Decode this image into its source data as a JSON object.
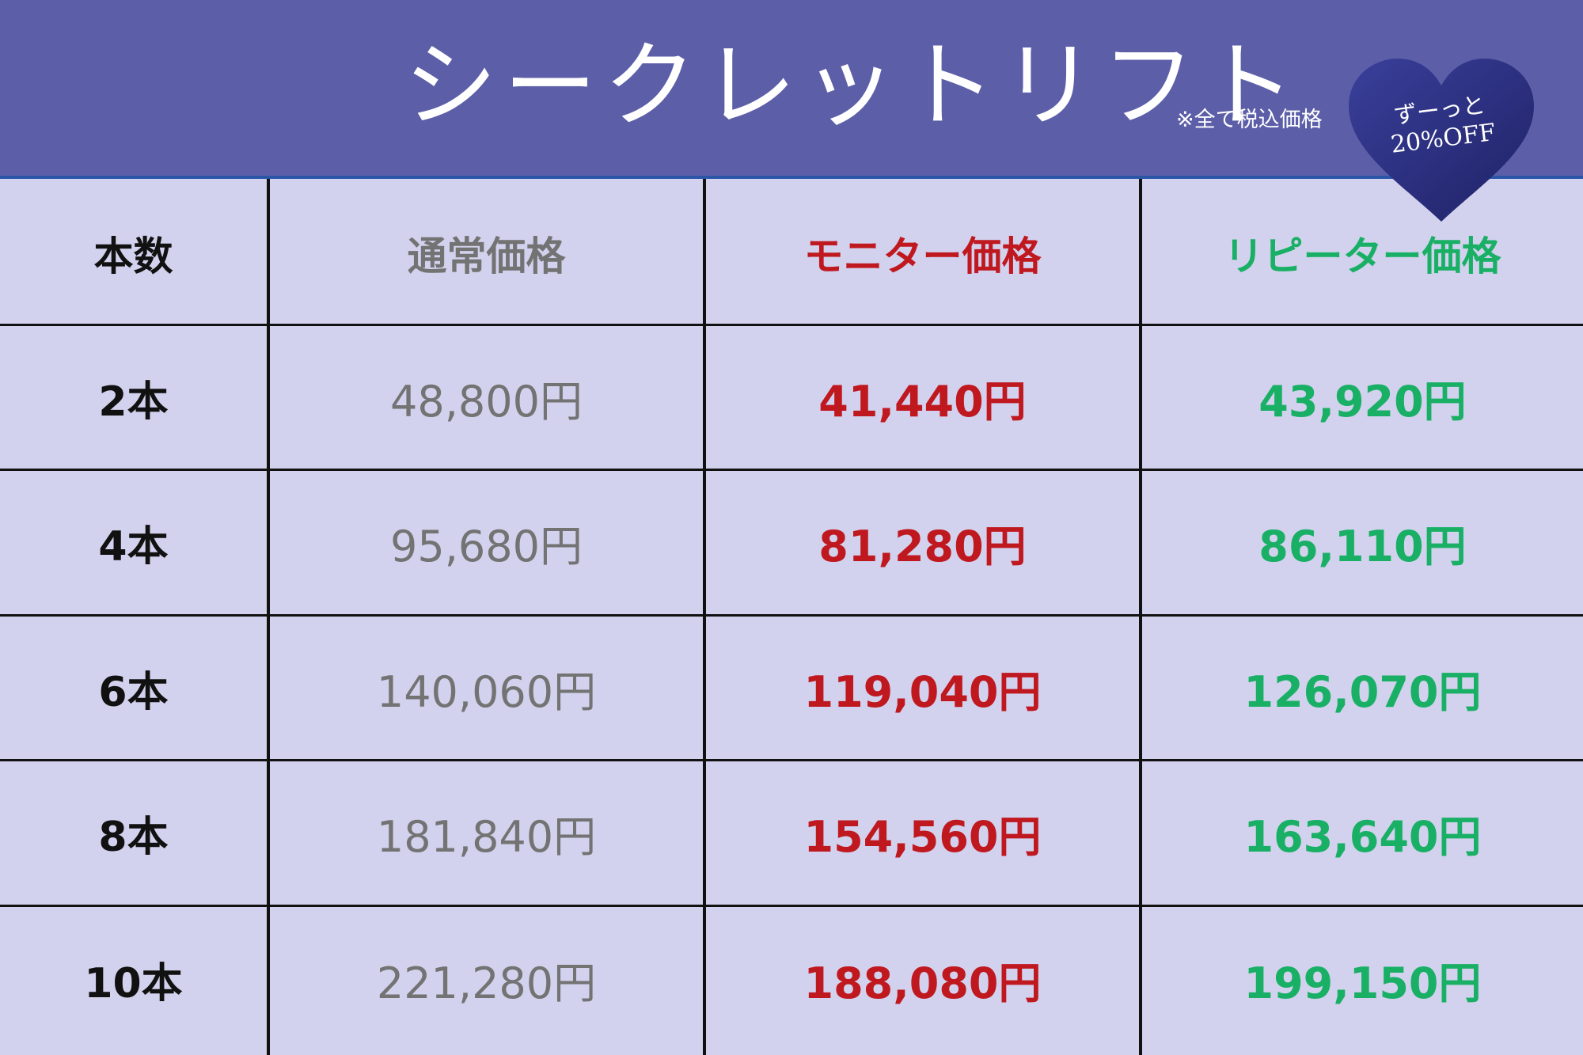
{
  "header": {
    "title": "シークレットリフト",
    "note": "※全て税込価格",
    "badge_line1": "ずーっと",
    "badge_line2": "20%OFF"
  },
  "colors": {
    "header_bg": "#5c5fa8",
    "table_bg": "#d2d2ee",
    "heart": "#2b3180",
    "normal_price": "#737373",
    "monitor_price": "#c0181f",
    "repeater_price": "#19b066"
  },
  "table": {
    "columns": [
      "本数",
      "通常価格",
      "モニター価格",
      "リピーター価格"
    ],
    "rows": [
      {
        "count": "2本",
        "normal": "48,800円",
        "monitor": "41,440円",
        "repeater": "43,920円"
      },
      {
        "count": "4本",
        "normal": "95,680円",
        "monitor": "81,280円",
        "repeater": "86,110円"
      },
      {
        "count": "6本",
        "normal": "140,060円",
        "monitor": "119,040円",
        "repeater": "126,070円"
      },
      {
        "count": "8本",
        "normal": "181,840円",
        "monitor": "154,560円",
        "repeater": "163,640円"
      },
      {
        "count": "10本",
        "normal": "221,280円",
        "monitor": "188,080円",
        "repeater": "199,150円"
      }
    ]
  }
}
